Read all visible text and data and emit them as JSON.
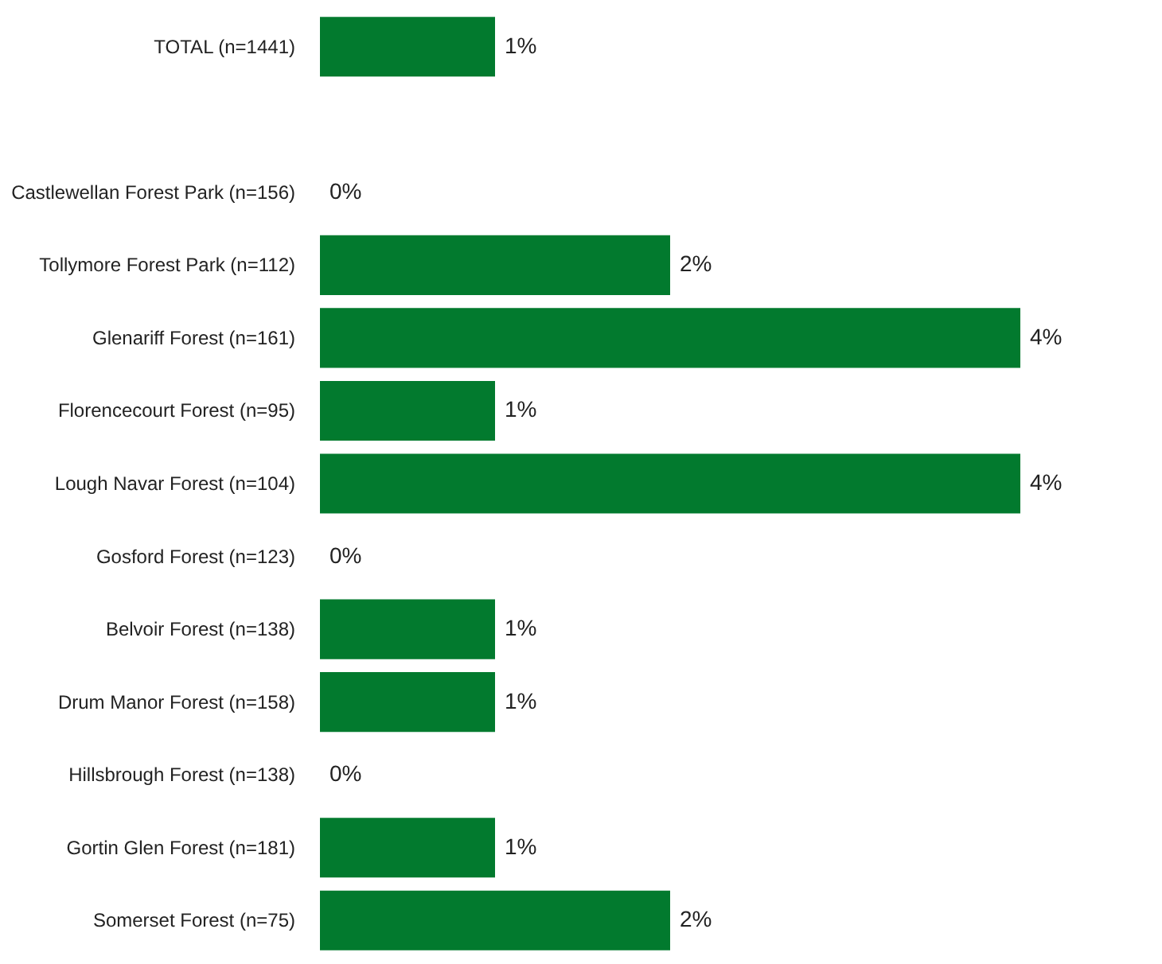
{
  "chart_data": {
    "type": "bar",
    "orientation": "horizontal",
    "categories": [
      "TOTAL (n=1441)",
      null,
      "Castlewellan Forest Park (n=156)",
      "Tollymore Forest Park (n=112)",
      "Glenariff Forest (n=161)",
      "Florencecourt Forest (n=95)",
      "Lough Navar Forest (n=104)",
      "Gosford Forest (n=123)",
      "Belvoir Forest (n=138)",
      "Drum Manor Forest (n=158)",
      "Hillsbrough Forest (n=138)",
      "Gortin Glen Forest (n=181)",
      "Somerset Forest (n=75)"
    ],
    "values": [
      1,
      null,
      0,
      2,
      4,
      1,
      4,
      0,
      1,
      1,
      0,
      1,
      2
    ],
    "value_labels": [
      "1%",
      null,
      "0%",
      "2%",
      "4%",
      "1%",
      "4%",
      "0%",
      "1%",
      "1%",
      "0%",
      "1%",
      "2%"
    ],
    "color": "#027a2e",
    "grid": false
  }
}
